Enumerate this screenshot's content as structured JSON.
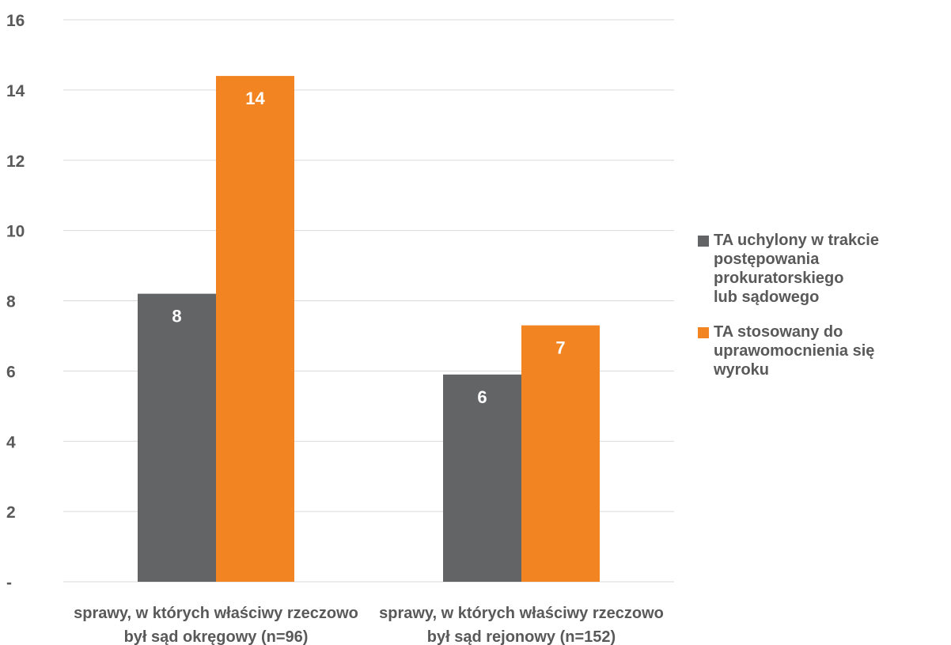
{
  "chart_data": {
    "type": "bar",
    "title": "",
    "xlabel": "",
    "ylabel": "",
    "ylim": [
      0,
      16
    ],
    "yticks": [
      0,
      2,
      4,
      6,
      8,
      10,
      12,
      14,
      16
    ],
    "ytick_labels": [
      "-",
      "2",
      "4",
      "6",
      "8",
      "10",
      "12",
      "14",
      "16"
    ],
    "grid": true,
    "legend_position": "right",
    "categories": [
      "sprawy, w których właściwy rzeczowo\nbył sąd okręgowy (n=96)",
      "sprawy, w których właściwy rzeczowo\nbył sąd rejonowy (n=152)"
    ],
    "series": [
      {
        "name": "TA uchylony w trakcie\npostępowania prokuratorskiego\nlub sądowego",
        "color": "#636466",
        "values": [
          8.2,
          5.9
        ],
        "labels": [
          "8",
          "6"
        ]
      },
      {
        "name": "TA stosowany do\nuprawomocnienia się\nwyroku",
        "color": "#F28421",
        "values": [
          14.4,
          7.3
        ],
        "labels": [
          "14",
          "7"
        ]
      }
    ]
  }
}
